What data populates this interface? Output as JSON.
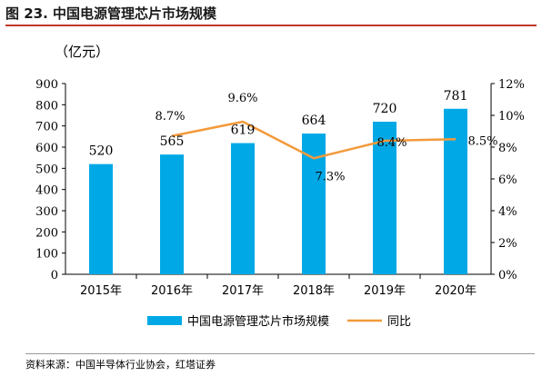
{
  "figure": {
    "title": "图 23. 中国电源管理芯片市场规模",
    "unit": "（亿元）",
    "source": "资料来源：中国半导体行业协会，红塔证券"
  },
  "chart_data": {
    "type": "bar",
    "categories": [
      "2015年",
      "2016年",
      "2017年",
      "2018年",
      "2019年",
      "2020年"
    ],
    "series": [
      {
        "name": "中国电源管理芯片市场规模",
        "type": "bar",
        "axis": "left",
        "values": [
          520,
          565,
          619,
          664,
          720,
          781
        ],
        "labels": [
          "520",
          "565",
          "619",
          "664",
          "720",
          "781"
        ],
        "color": "#00a9e6"
      },
      {
        "name": "同比",
        "type": "line",
        "axis": "right",
        "values": [
          null,
          8.7,
          9.6,
          7.3,
          8.4,
          8.5
        ],
        "labels": [
          "",
          "8.7%",
          "9.6%",
          "7.3%",
          "8.4%",
          "8.5%"
        ],
        "color": "#f39a3b"
      }
    ],
    "left_axis": {
      "min": 0,
      "max": 900,
      "step": 100,
      "ticks": [
        "0",
        "100",
        "200",
        "300",
        "400",
        "500",
        "600",
        "700",
        "800",
        "900"
      ]
    },
    "right_axis": {
      "min": 0,
      "max": 12,
      "step": 2,
      "ticks": [
        "0%",
        "2%",
        "4%",
        "6%",
        "8%",
        "10%",
        "12%"
      ]
    },
    "legend": {
      "position": "bottom"
    },
    "grid": false
  }
}
